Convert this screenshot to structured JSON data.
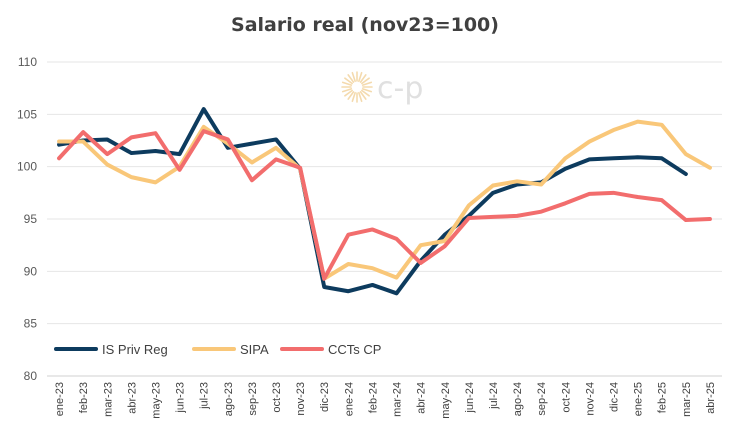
{
  "chart_data": {
    "type": "line",
    "title": "Salario real (nov23=100)",
    "xlabel": "",
    "ylabel": "",
    "ylim": [
      80,
      110
    ],
    "yticks": [
      "80",
      "85",
      "90",
      "95",
      "100",
      "105",
      "110"
    ],
    "grid": true,
    "legend_position": "bottom-left",
    "categories": [
      "ene-23",
      "feb-23",
      "mar-23",
      "abr-23",
      "may-23",
      "jun-23",
      "jul-23",
      "ago-23",
      "sep-23",
      "oct-23",
      "nov-23",
      "dic-23",
      "ene-24",
      "feb-24",
      "mar-24",
      "abr-24",
      "may-24",
      "jun-24",
      "jul-24",
      "ago-24",
      "sep-24",
      "oct-24",
      "nov-24",
      "dic-24",
      "ene-25",
      "feb-25",
      "mar-25",
      "abr-25"
    ],
    "series": [
      {
        "name": "IS Priv Reg",
        "color": "#0d3b5e",
        "values": [
          102.1,
          102.5,
          102.6,
          101.3,
          101.5,
          101.2,
          105.5,
          101.8,
          102.2,
          102.6,
          99.8,
          88.5,
          88.1,
          88.7,
          87.9,
          91.0,
          93.5,
          95.3,
          97.5,
          98.3,
          98.5,
          99.8,
          100.7,
          100.8,
          100.9,
          100.8,
          99.3,
          null
        ]
      },
      {
        "name": "SIPA",
        "color": "#f9c779",
        "values": [
          102.4,
          102.4,
          100.2,
          99.0,
          98.5,
          100.0,
          103.8,
          102.2,
          100.4,
          101.8,
          99.8,
          89.3,
          90.7,
          90.3,
          89.4,
          92.5,
          92.9,
          96.3,
          98.2,
          98.6,
          98.3,
          100.8,
          102.4,
          103.5,
          104.3,
          104.0,
          101.2,
          99.9
        ]
      },
      {
        "name": "CCTs CP",
        "color": "#f26d6d",
        "values": [
          100.8,
          103.3,
          101.2,
          102.8,
          103.2,
          99.7,
          103.4,
          102.6,
          98.7,
          100.7,
          99.9,
          89.3,
          93.5,
          94.0,
          93.1,
          90.8,
          92.4,
          95.1,
          95.2,
          95.3,
          95.7,
          96.5,
          97.4,
          97.5,
          97.1,
          96.8,
          94.9,
          95.0
        ]
      }
    ]
  },
  "logo": {
    "text": "c-p",
    "icon": "sun-burst-icon"
  }
}
